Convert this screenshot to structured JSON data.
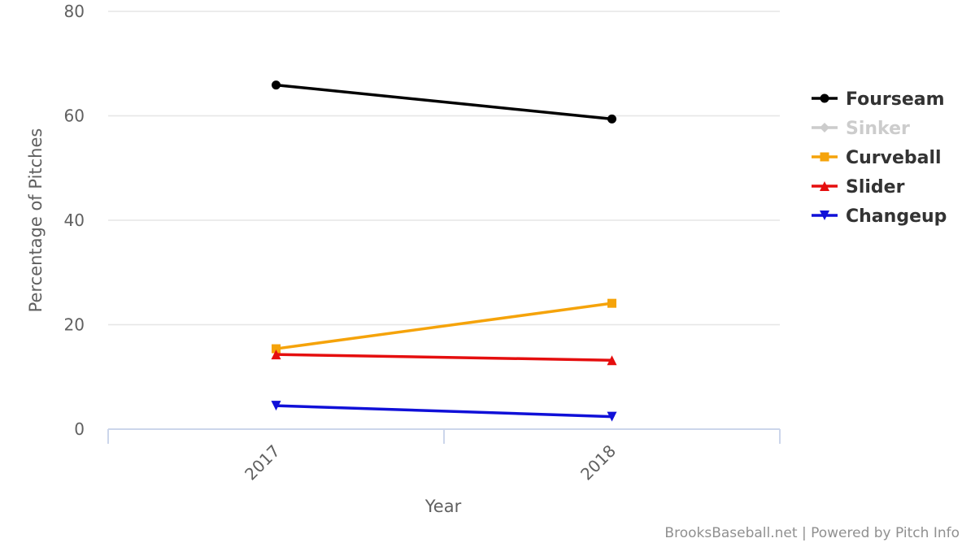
{
  "chart_data": {
    "type": "line",
    "title": "",
    "xlabel": "Year",
    "ylabel": "Percentage of Pitches",
    "categories": [
      "2017",
      "2018"
    ],
    "ylim": [
      0,
      80
    ],
    "yticks": [
      0,
      20,
      40,
      60,
      80
    ],
    "grid": true,
    "legend_position": "right",
    "series": [
      {
        "name": "Fourseam",
        "color": "#000000",
        "marker": "circle",
        "values": [
          65.9,
          59.4
        ],
        "hidden": false
      },
      {
        "name": "Sinker",
        "color": "#cccccc",
        "marker": "diamond",
        "values": [
          null,
          null
        ],
        "hidden": true
      },
      {
        "name": "Curveball",
        "color": "#f5a30a",
        "marker": "square",
        "values": [
          15.4,
          24.1
        ],
        "hidden": false
      },
      {
        "name": "Slider",
        "color": "#e50e0e",
        "marker": "triangle-up",
        "values": [
          14.3,
          13.2
        ],
        "hidden": false
      },
      {
        "name": "Changeup",
        "color": "#1010d8",
        "marker": "triangle-down",
        "values": [
          4.5,
          2.4
        ],
        "hidden": false
      }
    ]
  },
  "credits": "BrooksBaseball.net | Powered by Pitch Info"
}
